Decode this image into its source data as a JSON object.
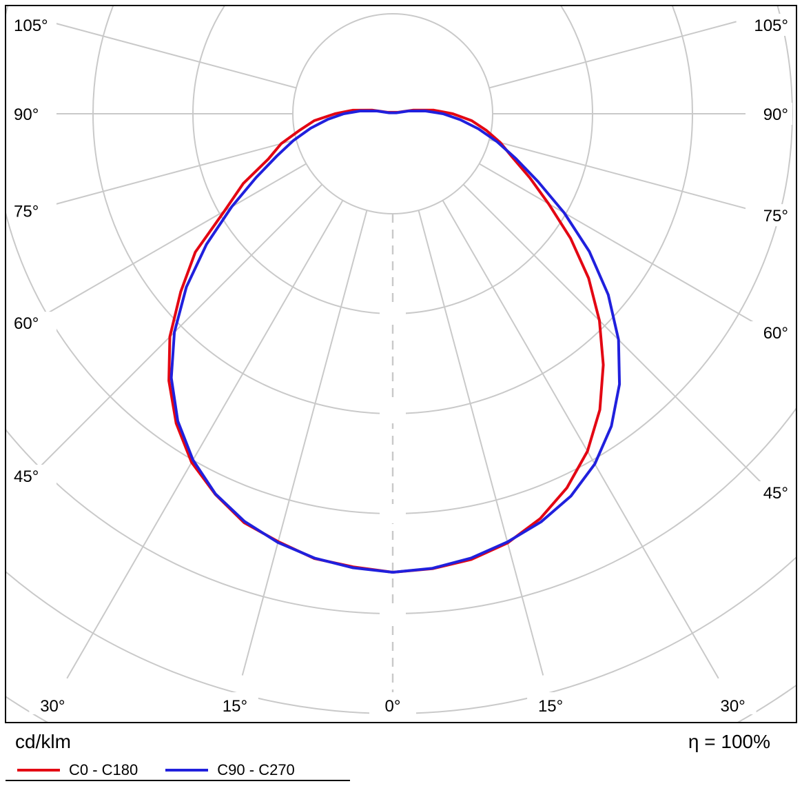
{
  "chart_data": {
    "type": "polar",
    "subtype": "photometric-intensity-distribution",
    "units_label": "cd/klm",
    "efficiency_label": "η = 100%",
    "grid": {
      "rings": 7,
      "ring_values_labeled": false,
      "spoke_step_deg": 15,
      "max_angle_deg": 105,
      "color": "#c9c9c9"
    },
    "angle_ticks": [
      {
        "deg": 0,
        "label": "0°"
      },
      {
        "deg": 15,
        "label": "15°"
      },
      {
        "deg": 30,
        "label": "30°"
      },
      {
        "deg": 45,
        "label": "45°"
      },
      {
        "deg": 60,
        "label": "60°"
      },
      {
        "deg": 75,
        "label": "75°"
      },
      {
        "deg": 90,
        "label": "90°"
      },
      {
        "deg": 105,
        "label": "105°"
      }
    ],
    "radial_scale": "unlabeled; intensities normalized to maximum (at 0° nadir)",
    "angles_deg": [
      0,
      5,
      10,
      15,
      20,
      25,
      30,
      35,
      40,
      45,
      50,
      55,
      60,
      65,
      70,
      75,
      80,
      85,
      90,
      95,
      100,
      105
    ],
    "series": [
      {
        "name": "C0 - C180",
        "color": "#e30613",
        "values_left": [
          1.0,
          0.992,
          0.985,
          0.966,
          0.949,
          0.916,
          0.878,
          0.824,
          0.76,
          0.688,
          0.604,
          0.526,
          0.424,
          0.36,
          0.289,
          0.252,
          0.206,
          0.172,
          0.126,
          0.088,
          0.046,
          0.012
        ],
        "values_right": [
          1.0,
          0.996,
          0.987,
          0.969,
          0.94,
          0.9,
          0.85,
          0.788,
          0.715,
          0.638,
          0.558,
          0.474,
          0.393,
          0.33,
          0.278,
          0.243,
          0.207,
          0.173,
          0.131,
          0.09,
          0.046,
          0.012
        ]
      },
      {
        "name": "C90 - C270",
        "color": "#2020dd",
        "values_left": [
          1.0,
          0.994,
          0.984,
          0.968,
          0.946,
          0.915,
          0.872,
          0.818,
          0.752,
          0.674,
          0.588,
          0.496,
          0.406,
          0.329,
          0.269,
          0.224,
          0.182,
          0.143,
          0.107,
          0.071,
          0.035,
          0.008
        ],
        "values_right": [
          1.0,
          0.995,
          0.984,
          0.967,
          0.947,
          0.92,
          0.882,
          0.832,
          0.77,
          0.697,
          0.614,
          0.524,
          0.432,
          0.35,
          0.286,
          0.236,
          0.19,
          0.148,
          0.11,
          0.071,
          0.035,
          0.008
        ]
      }
    ]
  }
}
